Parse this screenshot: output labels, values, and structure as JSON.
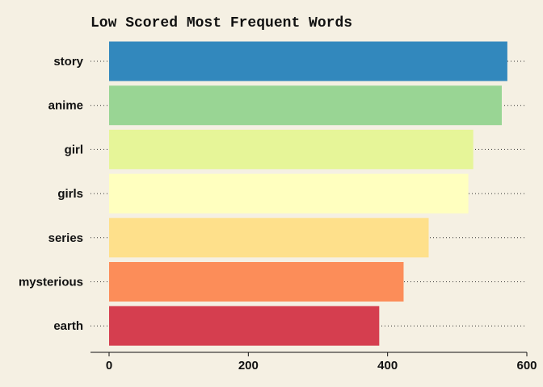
{
  "chart_data": {
    "type": "bar",
    "orientation": "horizontal",
    "title": "Low Scored Most Frequent Words",
    "xlabel": "",
    "ylabel": "",
    "categories": [
      "story",
      "anime",
      "girl",
      "girls",
      "series",
      "mysterious",
      "earth"
    ],
    "values": [
      572,
      564,
      523,
      516,
      459,
      423,
      388
    ],
    "colors": [
      "#3288bd",
      "#99d594",
      "#e6f598",
      "#ffffbf",
      "#fee08b",
      "#fc8d59",
      "#d53e4f"
    ],
    "xlim": [
      0,
      600
    ],
    "xticks": [
      0,
      200,
      400,
      600
    ],
    "grid": "dotted category guide lines",
    "legend": "none",
    "background": "#f5f0e3"
  }
}
